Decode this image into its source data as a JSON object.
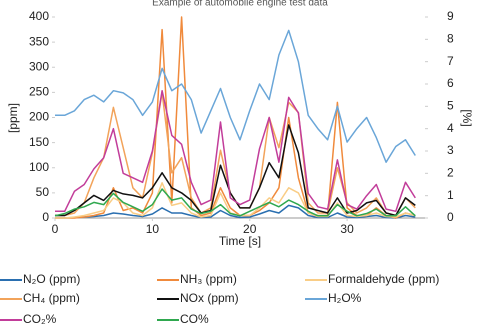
{
  "chart_data": {
    "type": "line",
    "title": "Example of automobile engine test data",
    "xlabel": "Time [s]",
    "ylabel": "[ppm]",
    "y2label": "[%]",
    "x": [
      0,
      1,
      2,
      3,
      4,
      5,
      6,
      7,
      8,
      9,
      10,
      11,
      12,
      13,
      14,
      15,
      16,
      17,
      18,
      19,
      20,
      21,
      22,
      23,
      24,
      25,
      26,
      27,
      28,
      29,
      30,
      31,
      32,
      33,
      34,
      35,
      36,
      37
    ],
    "xlim": [
      0,
      38
    ],
    "xticks": [
      0,
      10,
      20,
      30
    ],
    "ylim": [
      0,
      400
    ],
    "yticks": [
      0,
      50,
      100,
      150,
      200,
      250,
      300,
      350,
      400
    ],
    "y2lim": [
      0,
      9
    ],
    "y2ticks": [
      0,
      1,
      2,
      3,
      4,
      5,
      6,
      7,
      8,
      9
    ],
    "series": [
      {
        "name": "N₂O (ppm)",
        "color": "#2a6fb0",
        "values": [
          0,
          0,
          1,
          2,
          3,
          5,
          10,
          8,
          5,
          3,
          8,
          20,
          10,
          10,
          5,
          1,
          2,
          15,
          5,
          1,
          2,
          8,
          15,
          10,
          25,
          20,
          5,
          1,
          1,
          10,
          2,
          1,
          3,
          5,
          1,
          0,
          5,
          2
        ]
      },
      {
        "name": "NH₃ (ppm)",
        "color": "#f08a3c",
        "values": [
          0,
          0,
          0,
          2,
          5,
          10,
          60,
          15,
          20,
          10,
          50,
          375,
          30,
          400,
          20,
          5,
          10,
          60,
          20,
          5,
          5,
          15,
          30,
          60,
          200,
          80,
          10,
          5,
          5,
          230,
          20,
          5,
          5,
          20,
          5,
          0,
          10,
          5
        ]
      },
      {
        "name": "Formaldehyde (ppm)",
        "color": "#f9cd86",
        "values": [
          0,
          0,
          2,
          5,
          10,
          15,
          40,
          30,
          10,
          5,
          20,
          70,
          25,
          30,
          10,
          2,
          5,
          50,
          10,
          5,
          5,
          20,
          40,
          30,
          60,
          50,
          10,
          3,
          3,
          30,
          5,
          3,
          5,
          10,
          3,
          2,
          10,
          5
        ]
      },
      {
        "name": "CH₄ (ppm)",
        "color": "#f2a35a",
        "values": [
          5,
          5,
          10,
          30,
          80,
          120,
          220,
          140,
          60,
          40,
          130,
          250,
          90,
          120,
          40,
          10,
          20,
          135,
          50,
          20,
          20,
          60,
          200,
          140,
          230,
          210,
          30,
          10,
          10,
          100,
          30,
          10,
          20,
          40,
          10,
          5,
          40,
          20
        ]
      },
      {
        "name": "NOx (ppm)",
        "color": "#111111",
        "values": [
          5,
          5,
          15,
          30,
          45,
          35,
          55,
          48,
          45,
          40,
          60,
          90,
          60,
          50,
          35,
          10,
          15,
          105,
          50,
          20,
          20,
          60,
          110,
          80,
          185,
          130,
          20,
          15,
          10,
          40,
          10,
          15,
          30,
          35,
          10,
          5,
          40,
          25
        ]
      },
      {
        "name": "H₂O%",
        "color": "#6aa6d8",
        "axis": "y2",
        "values": [
          4.6,
          4.6,
          4.8,
          5.3,
          5.5,
          5.2,
          5.7,
          5.6,
          5.3,
          4.6,
          5.2,
          6.7,
          5.7,
          6.0,
          5.3,
          3.8,
          4.8,
          5.8,
          4.5,
          3.5,
          4.8,
          6.0,
          5.3,
          7.3,
          8.4,
          7.0,
          4.6,
          4.0,
          3.5,
          5.0,
          3.4,
          4.0,
          4.5,
          3.6,
          2.5,
          3.2,
          3.5,
          2.8
        ]
      },
      {
        "name": "CO₂%",
        "color": "#c23d9a",
        "axis": "y2",
        "values": [
          0.3,
          0.3,
          1.2,
          1.5,
          2.2,
          2.7,
          4.0,
          2.0,
          1.8,
          1.6,
          3.0,
          5.7,
          3.7,
          3.3,
          1.6,
          0.6,
          0.8,
          4.3,
          0.9,
          0.6,
          0.8,
          3.1,
          4.5,
          2.5,
          5.4,
          4.7,
          1.1,
          0.5,
          0.4,
          2.6,
          0.6,
          0.4,
          1.0,
          1.5,
          0.4,
          0.3,
          1.6,
          0.9
        ]
      },
      {
        "name": "CO%",
        "color": "#2fa84f",
        "axis": "y2",
        "values": [
          0.1,
          0.2,
          0.4,
          0.5,
          0.7,
          0.6,
          1.1,
          0.7,
          0.5,
          0.3,
          0.6,
          1.3,
          0.8,
          0.9,
          0.4,
          0.2,
          0.3,
          0.6,
          0.2,
          0.1,
          0.3,
          0.5,
          0.7,
          0.5,
          0.8,
          0.6,
          0.3,
          0.1,
          0.1,
          0.6,
          0.3,
          0.1,
          0.2,
          0.4,
          0.1,
          0.1,
          0.5,
          0.1
        ]
      }
    ]
  }
}
